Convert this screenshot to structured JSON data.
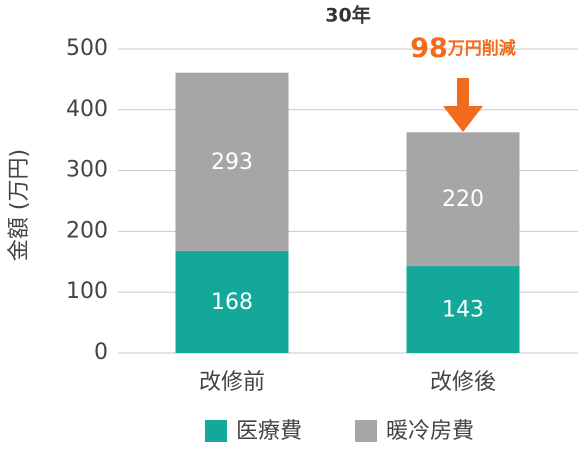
{
  "chart_data": {
    "type": "stacked_bar",
    "title": "30年",
    "y_label": "金額 (万円)",
    "categories": [
      "改修前",
      "改修後"
    ],
    "series": [
      {
        "name": "医療費",
        "color": "#14a89b",
        "values": [
          168,
          143
        ]
      },
      {
        "name": "暖冷房費",
        "color": "#a6a6a6",
        "values": [
          293,
          220
        ]
      }
    ],
    "ylim": [
      0,
      500
    ],
    "yticks": [
      0,
      100,
      200,
      300,
      400,
      500
    ],
    "grid": true,
    "annotation": {
      "number": "98",
      "text": "万円削減",
      "color": "#f26a1b"
    }
  }
}
